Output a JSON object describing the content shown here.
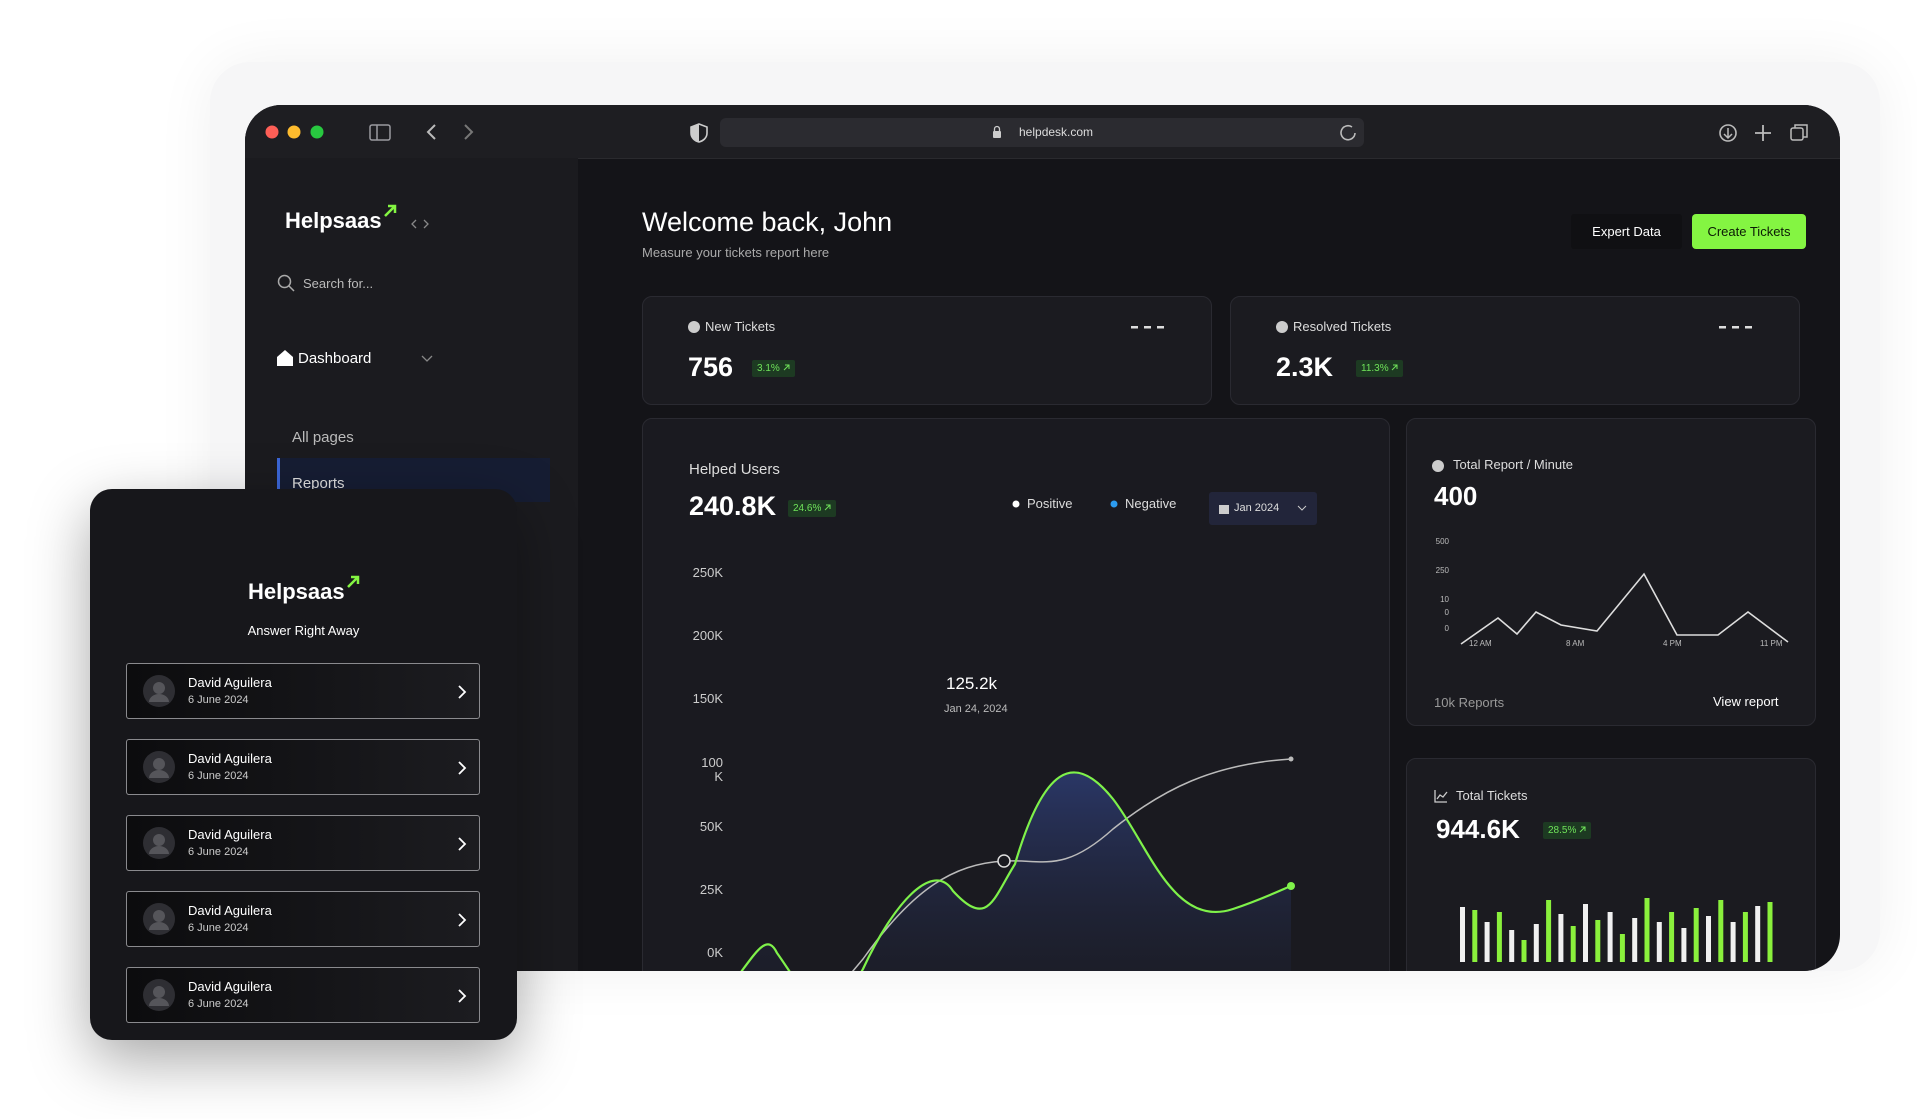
{
  "browser": {
    "url": "helpdesk.com"
  },
  "sidebar": {
    "logo": "Helpsaas",
    "search": "Search for...",
    "section": "Dashboard",
    "items": [
      "All pages",
      "Reports"
    ]
  },
  "header": {
    "title": "Welcome back, John",
    "subtitle": "Measure your tickets report here",
    "buttons": [
      "Expert Data",
      "Create Tickets"
    ]
  },
  "stats": [
    {
      "label": "New Tickets",
      "value": "756",
      "change": "3.1%"
    },
    {
      "label": "Resolved Tickets",
      "value": "2.3K",
      "change": "11.3%"
    }
  ],
  "helped_users": {
    "title": "Helped Users",
    "value": "240.8K",
    "change": "24.6%",
    "legend": [
      "Positive",
      "Negative"
    ],
    "period": "Jan 2024",
    "y_labels": [
      "250K",
      "200K",
      "150K",
      "100 K",
      "50K",
      "25K",
      "0K"
    ],
    "annotation": {
      "value": "125.2k",
      "date": "Jan 24, 2024"
    }
  },
  "report_minute": {
    "title": "Total Report / Minute",
    "value": "400",
    "y_labels": [
      "500",
      "250",
      "10",
      "0",
      "0"
    ],
    "x_labels": [
      "12 AM",
      "8 AM",
      "4 PM",
      "11 PM"
    ],
    "footer": "10k Reports",
    "link": "View report"
  },
  "total_tickets": {
    "title": "Total Tickets",
    "value": "944.6K",
    "change": "28.5%"
  },
  "mobile": {
    "logo": "Helpsaas",
    "tagline": "Answer Right Away",
    "items": [
      {
        "name": "David Aguilera",
        "date": "6 June 2024"
      },
      {
        "name": "David Aguilera",
        "date": "6 June 2024"
      },
      {
        "name": "David Aguilera",
        "date": "6 June 2024"
      },
      {
        "name": "David Aguilera",
        "date": "6 June 2024"
      },
      {
        "name": "David Aguilera",
        "date": "6 June 2024"
      }
    ]
  }
}
